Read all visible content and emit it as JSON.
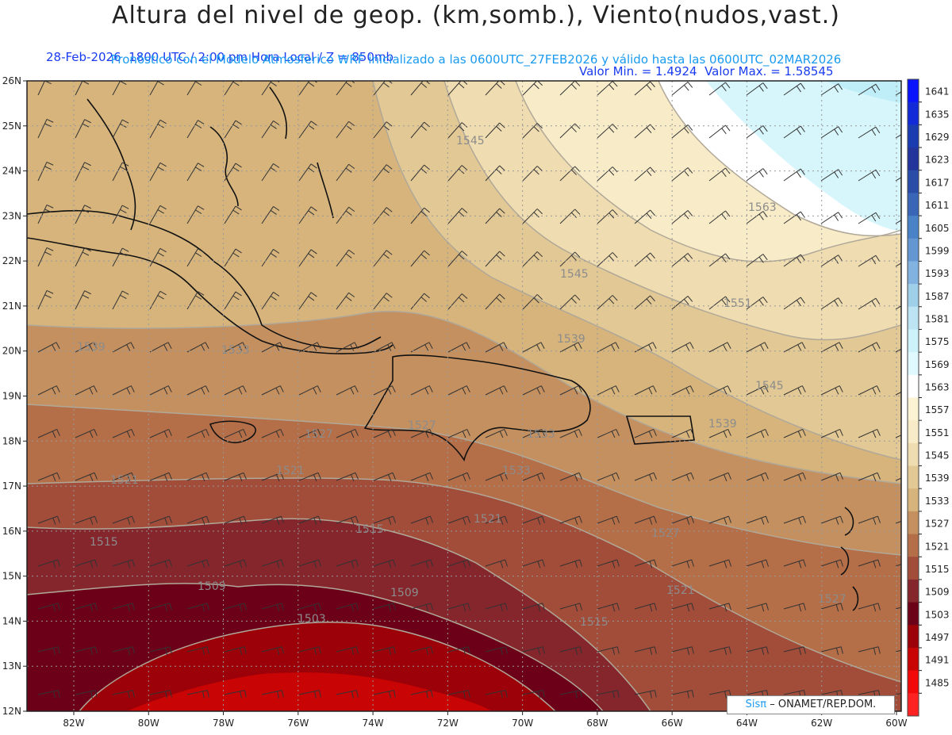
{
  "header": {
    "title": "Altura del nivel de geop. (km,somb.), Viento(nudos,vast.)",
    "info_left": "28-Feb-2026  1800 UTC / 2:00 pm Hora Local / Z = 850mb",
    "info_right": "Valor Min. = 1.4924  Valor Max. = 1.58545",
    "forecast": "Pronóstico con el Modelo Atmosferico WRF inicializado a las 0600UTC_27FEB2026 y válido hasta las  0600UTC_02MAR2026"
  },
  "credit": {
    "brand": "Sisπ",
    "text": "– ONAMET/REP.DOM."
  },
  "map": {
    "lat_labels": [
      "26N",
      "25N",
      "24N",
      "23N",
      "22N",
      "21N",
      "20N",
      "19N",
      "18N",
      "17N",
      "16N",
      "15N",
      "14N",
      "13N",
      "12N"
    ],
    "lon_labels": [
      "82W",
      "80W",
      "78W",
      "76W",
      "74W",
      "72W",
      "70W",
      "68W",
      "66W",
      "64W",
      "62W",
      "60W"
    ],
    "contour_labels": [
      "1545",
      "1563",
      "1545",
      "1551",
      "1539",
      "1545",
      "1539",
      "1533",
      "1533",
      "1527",
      "1527",
      "1539",
      "1533",
      "1521",
      "1521",
      "1515",
      "1521",
      "1527",
      "1515",
      "1509",
      "1509",
      "1521",
      "1527",
      "1503",
      "1515"
    ]
  },
  "colorbar": {
    "levels": [
      "1641",
      "1635",
      "1629",
      "1623",
      "1617",
      "1611",
      "1605",
      "1599",
      "1593",
      "1587",
      "1581",
      "1575",
      "1569",
      "1563",
      "1557",
      "1551",
      "1545",
      "1539",
      "1533",
      "1527",
      "1521",
      "1515",
      "1509",
      "1503",
      "1497",
      "1491",
      "1485"
    ],
    "colors": [
      "#0a14ff",
      "#122ad8",
      "#1a3cb0",
      "#23349a",
      "#2a4ea8",
      "#3a66b8",
      "#4a82c8",
      "#6496d2",
      "#82b2e0",
      "#a0cfea",
      "#bce4f2",
      "#cdf2fa",
      "#dff9fe",
      "#ffffff",
      "#fbf3d4",
      "#f7ebc8",
      "#efdcb0",
      "#e2c894",
      "#d6b47c",
      "#c49060",
      "#b46e48",
      "#a24c3a",
      "#84262c",
      "#6c0018",
      "#9c0008",
      "#c80404",
      "#f20a0a",
      "#ff2222"
    ]
  }
}
